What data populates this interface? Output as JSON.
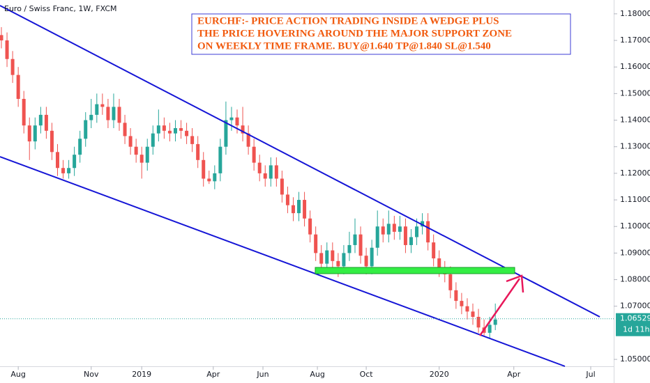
{
  "chart_data": {
    "type": "candlestick",
    "title": "Euro / Swiss Franc, 1W, FXCM",
    "annotation": [
      "EURCHF:- PRICE ACTION TRADING INSIDE A WEDGE PLUS",
      "THE PRICE HOVERING AROUND THE MAJOR SUPPORT ZONE",
      "ON WEEKLY TIME FRAME. BUY@1.640 TP@1.840 SL@1.540"
    ],
    "up_color": "#26a69a",
    "down_color": "#ef5350",
    "candles": [
      [
        1.172,
        1.175,
        1.167,
        1.17
      ],
      [
        1.17,
        1.173,
        1.16,
        1.163
      ],
      [
        1.163,
        1.166,
        1.154,
        1.157
      ],
      [
        1.157,
        1.16,
        1.145,
        1.148
      ],
      [
        1.148,
        1.151,
        1.135,
        1.138
      ],
      [
        1.138,
        1.141,
        1.125,
        1.132
      ],
      [
        1.132,
        1.141,
        1.129,
        1.138
      ],
      [
        1.138,
        1.145,
        1.135,
        1.142
      ],
      [
        1.142,
        1.145,
        1.133,
        1.136
      ],
      [
        1.136,
        1.139,
        1.125,
        1.128
      ],
      [
        1.128,
        1.131,
        1.119,
        1.122
      ],
      [
        1.122,
        1.125,
        1.118,
        1.12
      ],
      [
        1.12,
        1.125,
        1.118,
        1.122
      ],
      [
        1.122,
        1.13,
        1.119,
        1.127
      ],
      [
        1.127,
        1.136,
        1.124,
        1.133
      ],
      [
        1.133,
        1.143,
        1.13,
        1.14
      ],
      [
        1.14,
        1.148,
        1.137,
        1.142
      ],
      [
        1.142,
        1.15,
        1.139,
        1.146
      ],
      [
        1.146,
        1.15,
        1.142,
        1.145
      ],
      [
        1.145,
        1.148,
        1.137,
        1.14
      ],
      [
        1.14,
        1.15,
        1.137,
        1.145
      ],
      [
        1.145,
        1.148,
        1.136,
        1.139
      ],
      [
        1.139,
        1.142,
        1.131,
        1.134
      ],
      [
        1.134,
        1.137,
        1.127,
        1.13
      ],
      [
        1.13,
        1.133,
        1.124,
        1.127
      ],
      [
        1.127,
        1.13,
        1.118,
        1.124
      ],
      [
        1.124,
        1.133,
        1.121,
        1.13
      ],
      [
        1.13,
        1.138,
        1.127,
        1.135
      ],
      [
        1.135,
        1.144,
        1.132,
        1.138
      ],
      [
        1.138,
        1.141,
        1.133,
        1.136
      ],
      [
        1.136,
        1.139,
        1.132,
        1.135
      ],
      [
        1.135,
        1.14,
        1.132,
        1.137
      ],
      [
        1.137,
        1.14,
        1.133,
        1.136
      ],
      [
        1.136,
        1.139,
        1.131,
        1.134
      ],
      [
        1.134,
        1.137,
        1.128,
        1.131
      ],
      [
        1.131,
        1.134,
        1.122,
        1.125
      ],
      [
        1.125,
        1.128,
        1.115,
        1.118
      ],
      [
        1.118,
        1.121,
        1.116,
        1.117
      ],
      [
        1.117,
        1.123,
        1.114,
        1.12
      ],
      [
        1.12,
        1.133,
        1.117,
        1.13
      ],
      [
        1.13,
        1.147,
        1.127,
        1.14
      ],
      [
        1.14,
        1.145,
        1.136,
        1.141
      ],
      [
        1.141,
        1.144,
        1.135,
        1.138
      ],
      [
        1.138,
        1.145,
        1.132,
        1.135
      ],
      [
        1.135,
        1.138,
        1.127,
        1.13
      ],
      [
        1.13,
        1.133,
        1.121,
        1.124
      ],
      [
        1.124,
        1.127,
        1.117,
        1.12
      ],
      [
        1.12,
        1.123,
        1.115,
        1.118
      ],
      [
        1.118,
        1.126,
        1.115,
        1.123
      ],
      [
        1.123,
        1.126,
        1.115,
        1.118
      ],
      [
        1.118,
        1.121,
        1.109,
        1.112
      ],
      [
        1.112,
        1.115,
        1.105,
        1.108
      ],
      [
        1.108,
        1.111,
        1.102,
        1.105
      ],
      [
        1.105,
        1.113,
        1.102,
        1.11
      ],
      [
        1.11,
        1.113,
        1.1,
        1.103
      ],
      [
        1.103,
        1.106,
        1.094,
        1.097
      ],
      [
        1.097,
        1.1,
        1.087,
        1.09
      ],
      [
        1.09,
        1.093,
        1.083,
        1.086
      ],
      [
        1.086,
        1.094,
        1.083,
        1.091
      ],
      [
        1.091,
        1.094,
        1.084,
        1.087
      ],
      [
        1.087,
        1.09,
        1.081,
        1.085
      ],
      [
        1.085,
        1.093,
        1.082,
        1.09
      ],
      [
        1.09,
        1.098,
        1.087,
        1.093
      ],
      [
        1.093,
        1.103,
        1.09,
        1.097
      ],
      [
        1.097,
        1.1,
        1.086,
        1.089
      ],
      [
        1.089,
        1.092,
        1.082,
        1.085
      ],
      [
        1.085,
        1.095,
        1.082,
        1.092
      ],
      [
        1.092,
        1.106,
        1.089,
        1.1
      ],
      [
        1.1,
        1.103,
        1.094,
        1.097
      ],
      [
        1.097,
        1.106,
        1.094,
        1.101
      ],
      [
        1.101,
        1.104,
        1.095,
        1.098
      ],
      [
        1.098,
        1.104,
        1.095,
        1.1
      ],
      [
        1.1,
        1.103,
        1.09,
        1.093
      ],
      [
        1.093,
        1.099,
        1.09,
        1.096
      ],
      [
        1.096,
        1.103,
        1.093,
        1.1
      ],
      [
        1.1,
        1.105,
        1.097,
        1.102
      ],
      [
        1.102,
        1.105,
        1.091,
        1.094
      ],
      [
        1.094,
        1.097,
        1.085,
        1.088
      ],
      [
        1.088,
        1.091,
        1.081,
        1.084
      ],
      [
        1.084,
        1.087,
        1.079,
        1.082
      ],
      [
        1.082,
        1.085,
        1.073,
        1.076
      ],
      [
        1.076,
        1.079,
        1.069,
        1.072
      ],
      [
        1.072,
        1.075,
        1.067,
        1.07
      ],
      [
        1.07,
        1.073,
        1.065,
        1.068
      ],
      [
        1.068,
        1.071,
        1.063,
        1.066
      ],
      [
        1.066,
        1.069,
        1.06,
        1.062
      ],
      [
        1.062,
        1.065,
        1.059,
        1.06
      ],
      [
        1.06,
        1.066,
        1.058,
        1.063
      ],
      [
        1.063,
        1.071,
        1.061,
        1.065
      ]
    ],
    "ylim": [
      1.0474,
      1.1852
    ],
    "yticks": [
      {
        "value": 1.05,
        "label": "1.05000"
      },
      {
        "value": 1.07,
        "label": "1.07000"
      },
      {
        "value": 1.08,
        "label": "1.08000"
      },
      {
        "value": 1.09,
        "label": "1.09000"
      },
      {
        "value": 1.1,
        "label": "1.10000"
      },
      {
        "value": 1.11,
        "label": "1.11000"
      },
      {
        "value": 1.12,
        "label": "1.12000"
      },
      {
        "value": 1.13,
        "label": "1.13000"
      },
      {
        "value": 1.14,
        "label": "1.14000"
      },
      {
        "value": 1.15,
        "label": "1.15000"
      },
      {
        "value": 1.16,
        "label": "1.16000"
      },
      {
        "value": 1.17,
        "label": "1.17000"
      },
      {
        "value": 1.18,
        "label": "1.18000"
      }
    ],
    "xlim": [
      -0.25,
      109.1
    ],
    "xticks": [
      {
        "value": 3,
        "label": "Aug"
      },
      {
        "value": 16,
        "label": "Nov"
      },
      {
        "value": 25,
        "label": "2019"
      },
      {
        "value": 37.75,
        "label": "Apr"
      },
      {
        "value": 46.6,
        "label": "Jun"
      },
      {
        "value": 56.3,
        "label": "Aug"
      },
      {
        "value": 65,
        "label": "Oct"
      },
      {
        "value": 78,
        "label": "2020"
      },
      {
        "value": 91.3,
        "label": "Apr"
      },
      {
        "value": 105,
        "label": "Jul"
      }
    ],
    "last_price": 1.06529,
    "countdown": "1d 11h"
  }
}
